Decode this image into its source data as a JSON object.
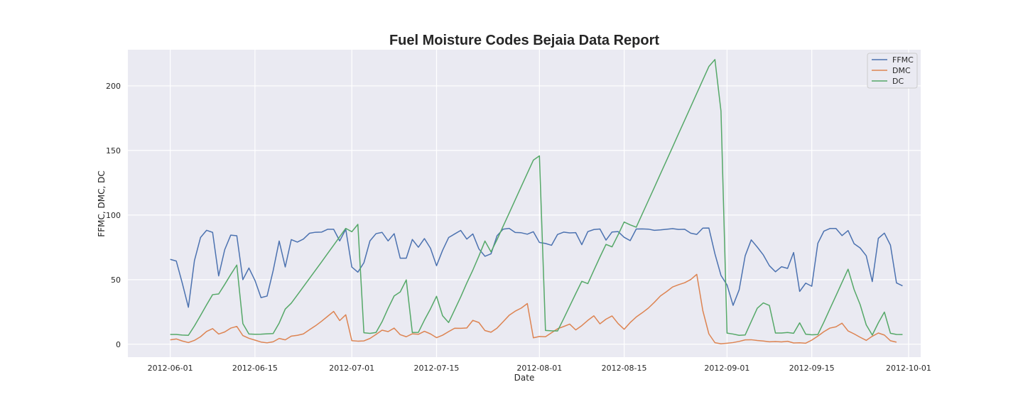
{
  "chart_data": {
    "type": "line",
    "title": "Fuel Moisture Codes Bejaia Data Report",
    "xlabel": "Date",
    "ylabel": "FFMC, DMC, DC",
    "xlim": [
      "2012-05-25",
      "2012-10-03"
    ],
    "ylim": [
      -10,
      228
    ],
    "x_ticks": [
      "2012-06-01",
      "2012-06-15",
      "2012-07-01",
      "2012-07-15",
      "2012-08-01",
      "2012-08-15",
      "2012-09-01",
      "2012-09-15",
      "2012-10-01"
    ],
    "y_ticks": [
      0,
      50,
      100,
      150,
      200
    ],
    "grid": true,
    "legend_position": "top-right",
    "start_date": "2012-06-01",
    "series": [
      {
        "name": "FFMC",
        "color": "#4c72b0",
        "values": [
          65.7,
          64.4,
          47.1,
          28.6,
          64.8,
          82.6,
          88.2,
          86.6,
          52.9,
          73.2,
          84.5,
          84,
          50,
          59,
          49.4,
          36.1,
          37.3,
          56.9,
          79.9,
          59.8,
          81,
          79.1,
          81.4,
          85.9,
          86.7,
          86.8,
          89,
          89,
          80,
          89,
          59.8,
          55.8,
          63.1,
          80,
          85.6,
          86.6,
          80,
          85.6,
          66.6,
          66.6,
          81.1,
          75.1,
          81.8,
          74.3,
          60.8,
          72.7,
          82.6,
          85.4,
          88.1,
          81.4,
          85.4,
          73.8,
          68.1,
          70,
          84,
          89.1,
          89.7,
          86.5,
          86.3,
          85.2,
          87.1,
          78.8,
          78,
          76.6,
          85,
          86.8,
          86.2,
          86.4,
          77.1,
          87.2,
          88.8,
          89.2,
          80.6,
          86.9,
          87.2,
          82.8,
          80.2,
          89.2,
          89.3,
          89.1,
          88.2,
          88.5,
          89,
          89.5,
          88.9,
          89,
          86,
          85,
          89.9,
          90,
          70,
          53.3,
          45.9,
          30.1,
          42.1,
          68.5,
          80.8,
          75.2,
          69.1,
          60.8,
          56.1,
          60,
          58.7,
          71,
          40.9,
          47.3,
          44.9,
          78.1,
          87.5,
          89.6,
          89.6,
          84.1,
          88,
          77.8,
          74.5,
          68.5,
          48.5,
          82,
          86,
          76.7,
          47.5,
          45.2
        ]
      },
      {
        "name": "DMC",
        "color": "#dd8452",
        "values": [
          3.4,
          4.1,
          2.5,
          1.3,
          3,
          5.8,
          9.9,
          12.1,
          7.9,
          9.5,
          12.5,
          13.8,
          6.7,
          4.6,
          3.2,
          1.7,
          1.1,
          1.9,
          4.5,
          3.4,
          6.3,
          6.9,
          8,
          11.2,
          14.3,
          17.8,
          21.6,
          25.4,
          18.3,
          22.8,
          2.8,
          2.4,
          2.6,
          4.5,
          7.6,
          10.9,
          9.8,
          12.5,
          7.4,
          5.8,
          8.1,
          7.7,
          10,
          8,
          5.1,
          7,
          9.8,
          12.4,
          12.3,
          12.6,
          18.5,
          16.8,
          10.6,
          9.3,
          12.5,
          17.4,
          22.4,
          25.6,
          28,
          31.5,
          5,
          6,
          5.8,
          8.9,
          12,
          13.7,
          15.6,
          11.1,
          14.4,
          18.5,
          22,
          15.8,
          19.4,
          21.9,
          16,
          11.6,
          16.8,
          21.1,
          24.4,
          28,
          32.5,
          37.4,
          40.7,
          44.3,
          46.1,
          47.6,
          50.1,
          54.1,
          26,
          8,
          1.2,
          0.4,
          0.8,
          1.3,
          2.2,
          3.4,
          3.5,
          2.9,
          2.5,
          1.9,
          2.1,
          1.8,
          2.3,
          1,
          1.1,
          0.8,
          3.2,
          6.3,
          9.7,
          12.5,
          13.5,
          16.3,
          10.3,
          8,
          5.4,
          3,
          6.2,
          8.7,
          7.1,
          2.7,
          1.6
        ]
      },
      {
        "name": "DC",
        "color": "#55a868",
        "values": [
          7.6,
          7.6,
          7.1,
          6.9,
          14.2,
          22.2,
          30.5,
          38.4,
          38.9,
          46.3,
          54,
          61.3,
          16,
          7.9,
          7.7,
          7.8,
          8.1,
          8.3,
          16.4,
          27.2,
          31.8,
          38.1,
          44.5,
          50.9,
          57.3,
          63.7,
          70.2,
          76.7,
          83.2,
          89.7,
          87.1,
          92.8,
          8.9,
          8.4,
          9.1,
          17.4,
          27.8,
          37.4,
          40.5,
          49.8,
          9.1,
          9.2,
          18.7,
          27.4,
          37.1,
          22.1,
          16.8,
          26.7,
          36.7,
          47.4,
          57.4,
          68.3,
          79.9,
          71.5,
          81,
          91.3,
          101.5,
          111.8,
          122.1,
          132.3,
          142.5,
          145.8,
          10.7,
          10.4,
          10.3,
          19.7,
          29.5,
          39.2,
          48.7,
          46.9,
          57.3,
          67.5,
          77.3,
          75.4,
          84.7,
          94.6,
          92.4,
          90.6,
          100.9,
          111.2,
          121.5,
          131.9,
          142.2,
          152.6,
          163.1,
          173.4,
          183.8,
          194.2,
          204.6,
          215,
          220.4,
          180.5,
          8.6,
          7.9,
          6.9,
          7.2,
          17.6,
          27.9,
          32,
          30,
          8.7,
          8.7,
          9.1,
          8.5,
          16.6,
          7.8,
          7.3,
          7.5,
          17.1,
          27.4,
          37.6,
          47.9,
          58.1,
          42.3,
          30.6,
          15,
          7.1,
          16.6,
          24.9,
          8.5,
          7.6,
          7.5
        ]
      }
    ]
  }
}
